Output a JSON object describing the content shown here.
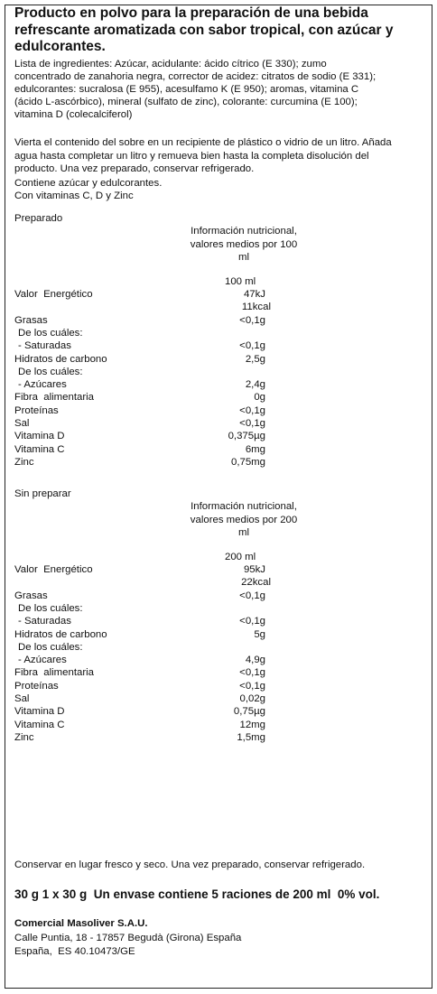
{
  "title": [
    "Producto en polvo para la preparación de una bebida",
    "refrescante aromatizada con sabor tropical, con azúcar y",
    "edulcorantes."
  ],
  "ingredients": [
    "Lista de ingredientes: Azúcar, acidulante: ácido cítrico (E 330); zumo",
    "concentrado de zanahoria negra, corrector de acidez: citratos de sodio (E 331);",
    "edulcorantes: sucralosa (E 955), acesulfamo K (E 950); aromas, vitamina C",
    "(ácido L-ascórbico), mineral (sulfato de zinc), colorante: curcumina (E 100);",
    "vitamina D (colecalciferol)"
  ],
  "instructions": [
    "Vierta el contenido del sobre en un recipiente de plástico o vidrio de un litro. Añada",
    "agua hasta completar un litro y remueva bien hasta la completa disolución del",
    "producto. Una vez preparado, conservar refrigerado.",
    "Contiene azúcar y edulcorantes.",
    "Con vitaminas C, D y Zinc"
  ],
  "sections": [
    {
      "label": "Preparado",
      "header": [
        "Información nutricional,",
        "valores medios por 100",
        "ml"
      ],
      "column": "100 ml",
      "rows": [
        {
          "name": "Valor  Energético",
          "values": [
            "47kJ",
            "11kcal"
          ]
        },
        {
          "name": "Grasas",
          "values": [
            "<0,1g"
          ]
        },
        {
          "name": "De los cuáles:",
          "level": 1,
          "values": []
        },
        {
          "name": "- Saturadas",
          "level": 1,
          "values": [
            "<0,1g"
          ]
        },
        {
          "name": "Hidratos de carbono",
          "values": [
            "2,5g"
          ]
        },
        {
          "name": "De los cuáles:",
          "level": 1,
          "values": []
        },
        {
          "name": "- Azúcares",
          "level": 1,
          "values": [
            "2,4g"
          ]
        },
        {
          "name": "Fibra  alimentaria",
          "values": [
            "0g"
          ]
        },
        {
          "name": "Proteínas",
          "values": [
            "<0,1g"
          ]
        },
        {
          "name": "Sal",
          "values": [
            "<0,1g"
          ]
        },
        {
          "name": "Vitamina D",
          "values": [
            "0,375µg"
          ]
        },
        {
          "name": "Vitamina C",
          "values": [
            "6mg"
          ]
        },
        {
          "name": "Zinc",
          "values": [
            "0,75mg"
          ]
        }
      ]
    },
    {
      "label": "Sin preparar",
      "header": [
        "Información nutricional,",
        "valores medios por 200",
        "ml"
      ],
      "column": "200 ml",
      "rows": [
        {
          "name": "Valor  Energético",
          "values": [
            "95kJ",
            "22kcal"
          ]
        },
        {
          "name": "Grasas",
          "values": [
            "<0,1g"
          ]
        },
        {
          "name": "De los cuáles:",
          "level": 1,
          "values": []
        },
        {
          "name": "- Saturadas",
          "level": 1,
          "values": [
            "<0,1g"
          ]
        },
        {
          "name": "Hidratos de carbono",
          "values": [
            "5g"
          ]
        },
        {
          "name": "De los cuáles:",
          "level": 1,
          "values": []
        },
        {
          "name": "- Azúcares",
          "level": 1,
          "values": [
            "4,9g"
          ]
        },
        {
          "name": "Fibra  alimentaria",
          "values": [
            "<0,1g"
          ]
        },
        {
          "name": "Proteínas",
          "values": [
            "<0,1g"
          ]
        },
        {
          "name": "Sal",
          "values": [
            "0,02g"
          ]
        },
        {
          "name": "Vitamina D",
          "values": [
            "0,75µg"
          ]
        },
        {
          "name": "Vitamina C",
          "values": [
            "12mg"
          ]
        },
        {
          "name": "Zinc",
          "values": [
            "1,5mg"
          ]
        }
      ]
    }
  ],
  "storage": "Conservar en lugar fresco y seco. Una vez preparado, conservar refrigerado.",
  "quantity": "30 g 1 x 30 g  Un envase contiene 5 raciones de 200 ml  0% vol.",
  "company": {
    "name": "Comercial Masoliver S.A.U.",
    "lines": [
      "Calle Puntia, 18 - 17857 Begudà (Girona) España",
      "España,  ES 40.10473/GE"
    ]
  }
}
